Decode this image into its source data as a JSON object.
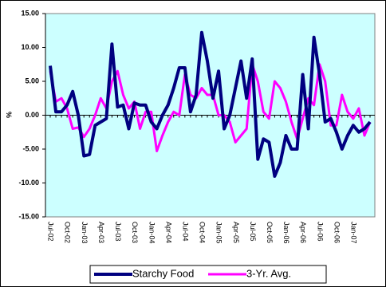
{
  "chart_data": {
    "type": "line",
    "y_label": "%",
    "categories": [
      "Jul-02",
      null,
      null,
      "Oct-02",
      null,
      null,
      "Jan-03",
      null,
      null,
      "Apr-03",
      null,
      null,
      "Jul-03",
      null,
      null,
      "Oct-03",
      null,
      null,
      "Jan-04",
      null,
      null,
      "Apr-04",
      null,
      null,
      "Jul-04",
      null,
      null,
      "Oct-04",
      null,
      null,
      "Jan-05",
      null,
      null,
      "Apr-05",
      null,
      null,
      "Jul-05",
      null,
      null,
      "Oct-05",
      null,
      null,
      "Jan-06",
      null,
      null,
      "Apr-06",
      null,
      null,
      "Jul-06",
      null,
      null,
      "Oct-06",
      null,
      null,
      "Jan-07",
      null,
      null,
      null
    ],
    "series": [
      {
        "name": "Starchy Food",
        "color": "#000080",
        "values": [
          7.3,
          0.5,
          0.5,
          1.5,
          3.5,
          0,
          -6,
          -5.8,
          -1.5,
          -1,
          -0.5,
          10.5,
          1.2,
          1.5,
          -2,
          1.8,
          1.5,
          1.5,
          -1,
          -2,
          0,
          1.5,
          4,
          7,
          7,
          0.5,
          3,
          12.2,
          8,
          2.5,
          6.5,
          -2,
          0,
          4,
          8,
          2.5,
          8.3,
          -6.5,
          -3.5,
          -4,
          -9,
          -7,
          -3,
          -5,
          -5,
          6,
          -2,
          11.5,
          6,
          -1,
          -0.5,
          -2.5,
          -5,
          -3,
          -1.5,
          -2.5,
          -2,
          -1
        ]
      },
      {
        "name": "3-Yr. Avg.",
        "color": "#ff00ff",
        "values": [
          6.5,
          2,
          2.5,
          1,
          -2,
          -1.8,
          -3.2,
          -2,
          0,
          2.5,
          1,
          5,
          6.5,
          3,
          1,
          2,
          -2,
          0.5,
          0.5,
          -5.3,
          -3,
          -1,
          0.5,
          0,
          6,
          3,
          2.5,
          4,
          3,
          3,
          0,
          0,
          -1,
          -4,
          -3,
          -2,
          7.5,
          5,
          0.5,
          -0.5,
          5,
          4,
          2,
          -1,
          -3.5,
          -0.5,
          2.5,
          1.5,
          7.5,
          5,
          -1.5,
          -1.5,
          3,
          0.5,
          -0.5,
          1,
          -3,
          -1
        ]
      }
    ],
    "ylim": [
      -15,
      15
    ],
    "yticks": [
      {
        "value": -15,
        "label": "-15.00"
      },
      {
        "value": -10,
        "label": "-10.00"
      },
      {
        "value": -5,
        "label": "-5.00"
      },
      {
        "value": 0,
        "label": "0.00"
      },
      {
        "value": 5,
        "label": "5.00"
      },
      {
        "value": 10,
        "label": "10.00"
      },
      {
        "value": 15,
        "label": "15.00"
      }
    ],
    "grid": false,
    "plot_background": "#ccffff",
    "legend": "bottom"
  }
}
